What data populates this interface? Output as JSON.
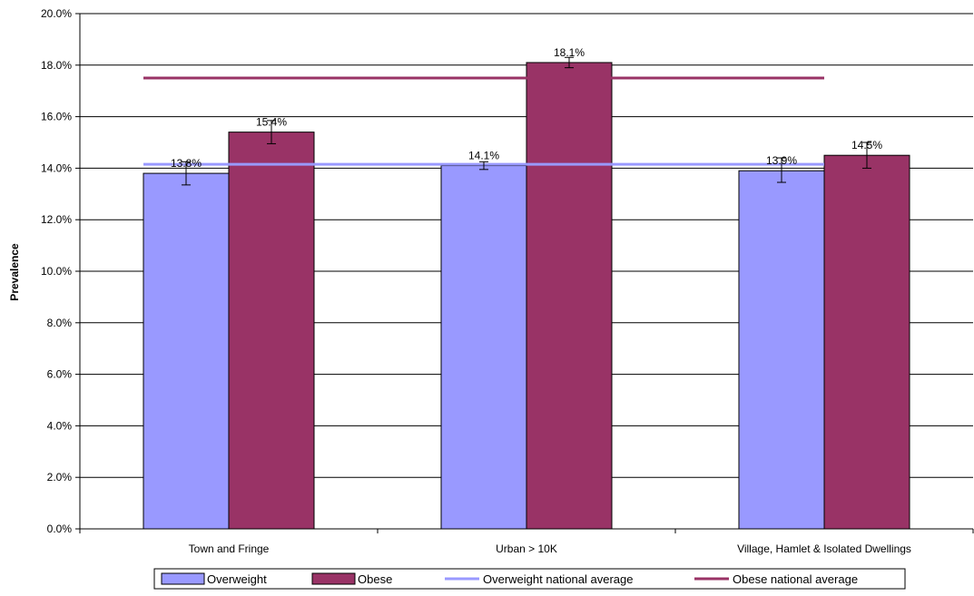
{
  "chart_data": {
    "type": "bar",
    "title": "",
    "xlabel": "",
    "ylabel": "Prevalence",
    "ylim": [
      0,
      20
    ],
    "y_tick_labels": [
      "0.0%",
      "2.0%",
      "4.0%",
      "6.0%",
      "8.0%",
      "10.0%",
      "12.0%",
      "14.0%",
      "16.0%",
      "18.0%",
      "20.0%"
    ],
    "grid": true,
    "legend_position": "bottom",
    "categories": [
      "Town and Fringe",
      "Urban > 10K",
      "Village, Hamlet & Isolated Dwellings"
    ],
    "series": [
      {
        "name": "Overweight",
        "color": "#9999ff",
        "values": [
          13.8,
          14.1,
          13.9
        ],
        "labels": [
          "13.8%",
          "14.1%",
          "13.9%"
        ],
        "error_low": [
          13.35,
          13.95,
          13.45
        ],
        "error_high": [
          14.25,
          14.25,
          14.4
        ]
      },
      {
        "name": "Obese",
        "color": "#993366",
        "values": [
          15.4,
          18.1,
          14.5
        ],
        "labels": [
          "15.4%",
          "18.1%",
          "14.5%"
        ],
        "error_low": [
          14.95,
          17.9,
          14.0
        ],
        "error_high": [
          15.85,
          18.3,
          15.0
        ]
      }
    ],
    "reference_lines": [
      {
        "name": "Overweight national average",
        "color": "#9999ff",
        "value": 14.15
      },
      {
        "name": "Obese national average",
        "color": "#993366",
        "value": 17.5
      }
    ]
  }
}
